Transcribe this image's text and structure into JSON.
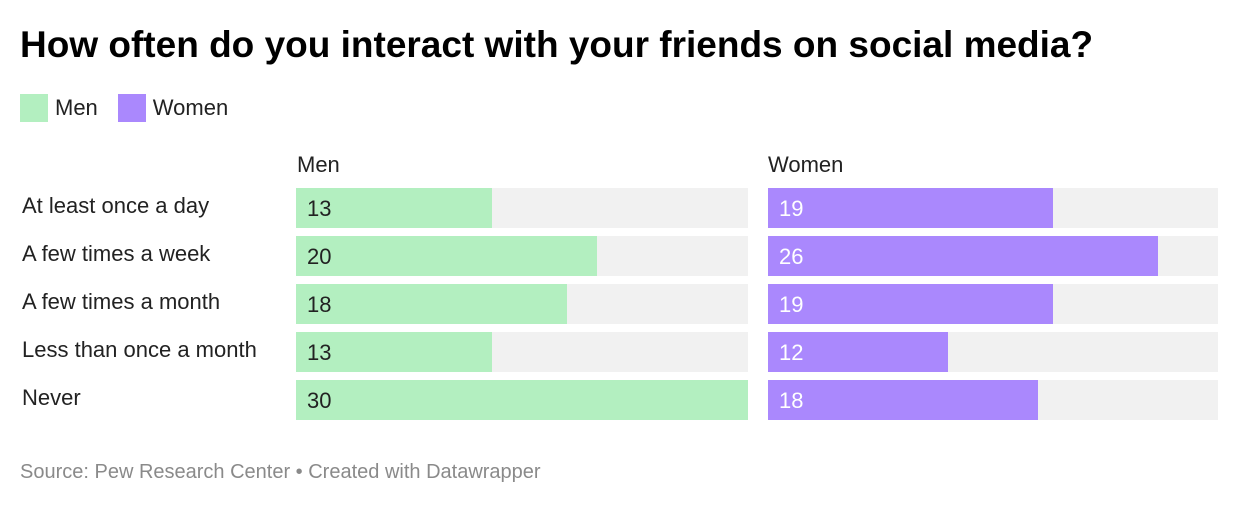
{
  "title": "How often do you interact with your friends on social media?",
  "legend": [
    {
      "label": "Men",
      "color": "#b3efc0"
    },
    {
      "label": "Women",
      "color": "#aa88fd"
    }
  ],
  "panels": {
    "men": "Men",
    "women": "Women"
  },
  "source": "Source: Pew Research Center • Created with Datawrapper",
  "chart_data": {
    "type": "bar",
    "title": "How often do you interact with your friends on social media?",
    "categories": [
      "At least once a day",
      "A few times a week",
      "A few times a month",
      "Less than once a month",
      "Never"
    ],
    "series": [
      {
        "name": "Men",
        "values": [
          13,
          20,
          18,
          13,
          30
        ],
        "color": "#b3efc0",
        "text_color": "#222222"
      },
      {
        "name": "Women",
        "values": [
          19,
          26,
          19,
          12,
          18
        ],
        "color": "#aa88fd",
        "text_color": "#ffffff"
      }
    ],
    "xlim": [
      0,
      30
    ],
    "legend_position": "top-left",
    "grid": false
  }
}
